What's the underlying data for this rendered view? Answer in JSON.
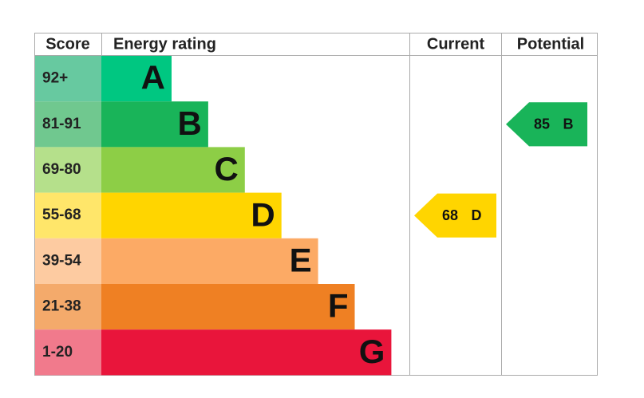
{
  "header": {
    "score": "Score",
    "rating": "Energy rating",
    "current": "Current",
    "potential": "Potential"
  },
  "bands": [
    {
      "score": "92+",
      "letter": "A",
      "color": "#00c781",
      "cell_color": "#67c9a0"
    },
    {
      "score": "81-91",
      "letter": "B",
      "color": "#19b459",
      "cell_color": "#70c88f"
    },
    {
      "score": "69-80",
      "letter": "C",
      "color": "#8dce46",
      "cell_color": "#b5e08b"
    },
    {
      "score": "55-68",
      "letter": "D",
      "color": "#ffd500",
      "cell_color": "#ffe66a"
    },
    {
      "score": "39-54",
      "letter": "E",
      "color": "#fcaa65",
      "cell_color": "#fdcba1"
    },
    {
      "score": "21-38",
      "letter": "F",
      "color": "#ef8023",
      "cell_color": "#f4aa6b"
    },
    {
      "score": "1-20",
      "letter": "G",
      "color": "#e9153b",
      "cell_color": "#f17a8c"
    }
  ],
  "current": {
    "value": 68,
    "letter": "D",
    "color": "#ffd500"
  },
  "potential": {
    "value": 85,
    "letter": "B",
    "color": "#19b459"
  }
}
